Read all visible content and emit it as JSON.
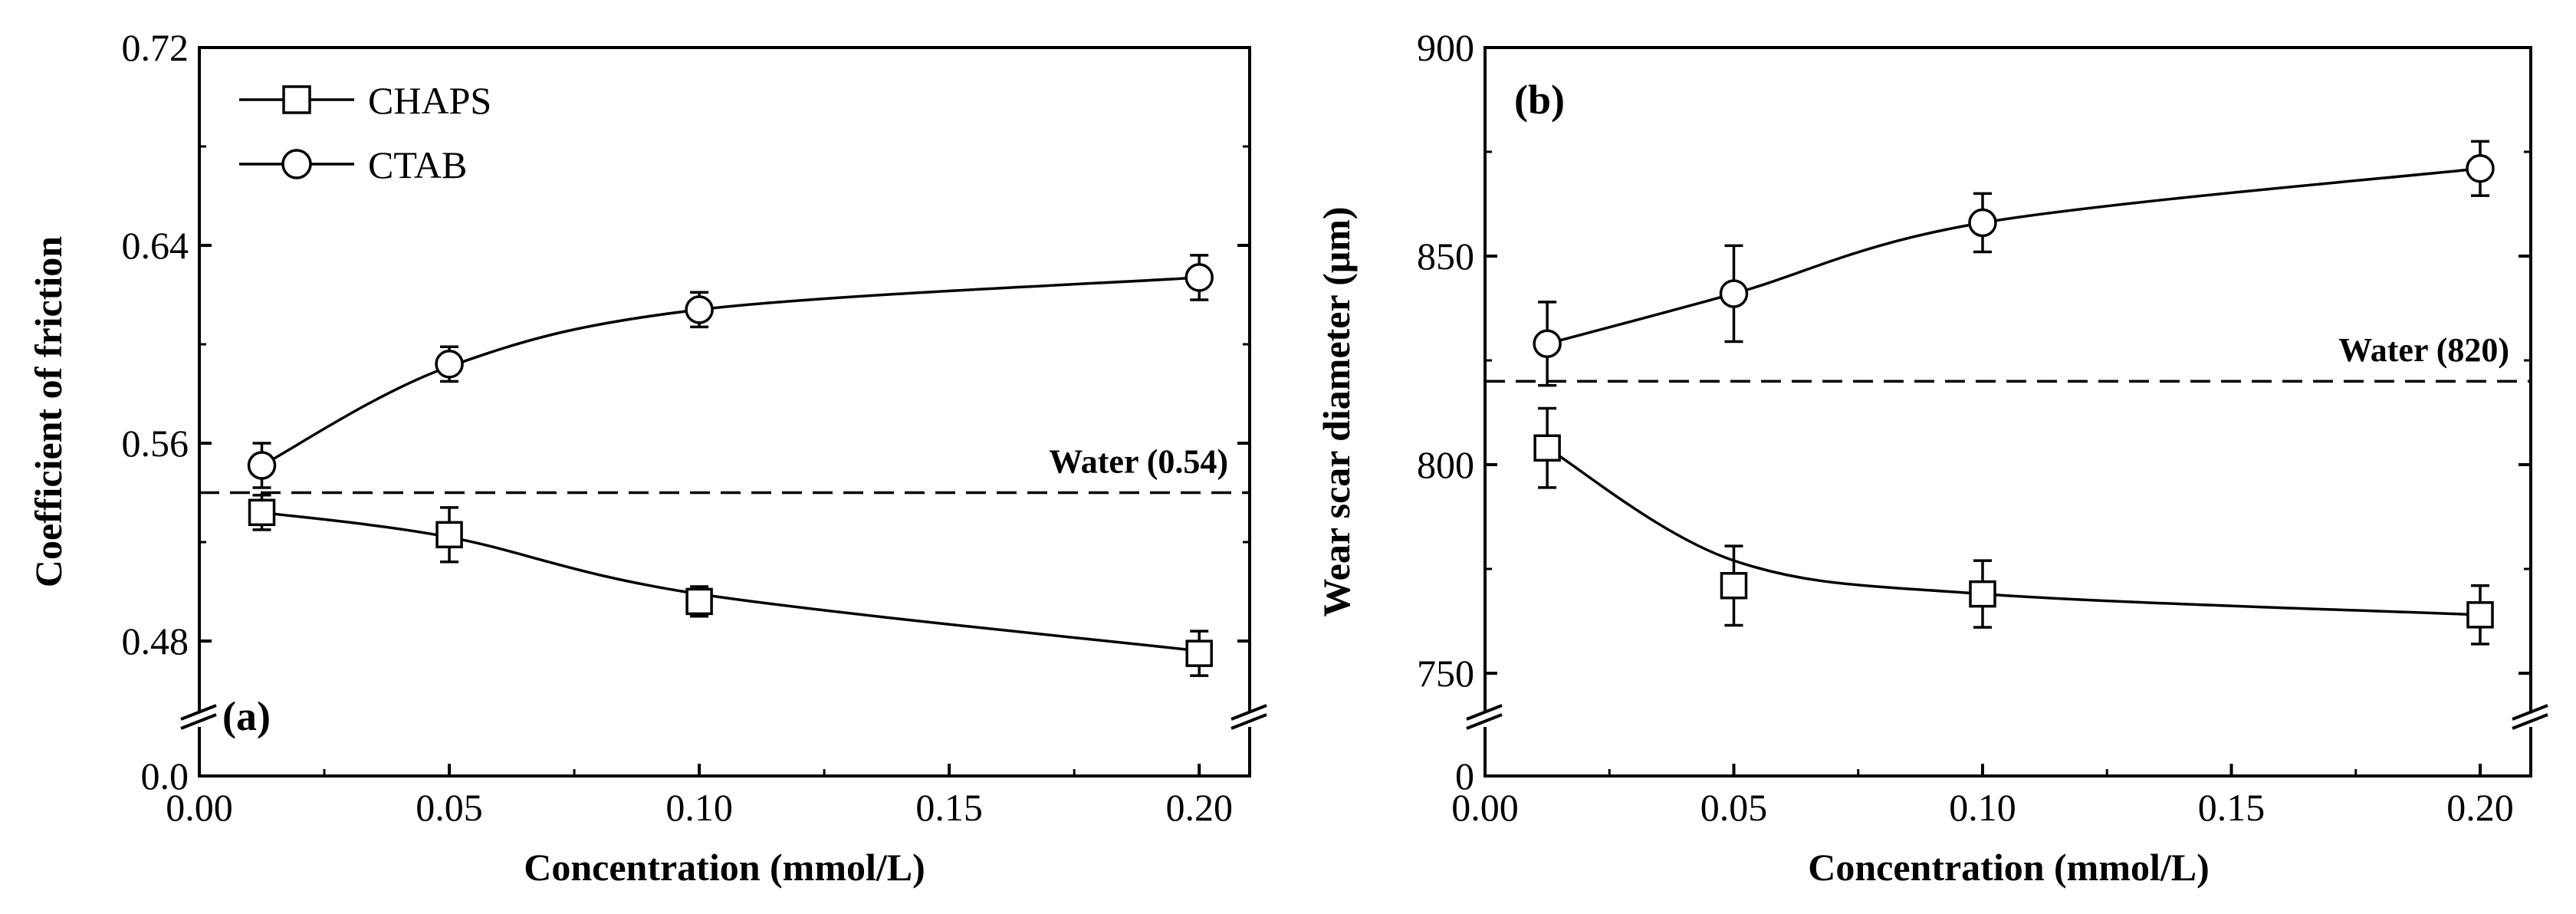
{
  "colors": {
    "ink": "#000000",
    "background": "#ffffff"
  },
  "chart_data": [
    {
      "type": "line",
      "panel": "(a)",
      "title": "",
      "xlabel": "Concentration (mmol/L)",
      "ylabel": "Coefficient of friction",
      "xlim": [
        0.0,
        0.21
      ],
      "ylim": [
        0.45,
        0.72
      ],
      "axis_break": true,
      "x_ticks": [
        0.0,
        0.05,
        0.1,
        0.15,
        0.2
      ],
      "x_tick_labels": [
        "0.00",
        "0.05",
        "0.10",
        "0.15",
        "0.20"
      ],
      "y_ticks": [
        0.48,
        0.56,
        0.64,
        0.72
      ],
      "y_tick_labels": [
        "0.48",
        "0.56",
        "0.64",
        "0.72"
      ],
      "y_zero_label": "0.0",
      "grid": false,
      "legend_position": "top-left",
      "reference_line": {
        "value": 0.54,
        "label": "Water (0.54)"
      },
      "x": [
        0.0125,
        0.05,
        0.1,
        0.2
      ],
      "series": [
        {
          "name": "CHAPS",
          "marker": "square",
          "values": [
            0.532,
            0.523,
            0.496,
            0.475
          ],
          "errors": [
            0.007,
            0.011,
            0.006,
            0.009
          ],
          "curve": [
            0.532,
            0.522,
            0.499,
            0.476
          ]
        },
        {
          "name": "CTAB",
          "marker": "circle",
          "values": [
            0.551,
            0.592,
            0.614,
            0.627
          ],
          "errors": [
            0.009,
            0.007,
            0.007,
            0.009
          ],
          "curve": [
            0.551,
            0.591,
            0.614,
            0.627
          ]
        }
      ]
    },
    {
      "type": "line",
      "panel": "(b)",
      "title": "",
      "xlabel": "Concentration (mmol/L)",
      "ylabel": "Wear scar diameter (μm)",
      "xlim": [
        0.0,
        0.21
      ],
      "ylim": [
        740,
        900
      ],
      "axis_break": true,
      "x_ticks": [
        0.0,
        0.05,
        0.1,
        0.15,
        0.2
      ],
      "x_tick_labels": [
        "0.00",
        "0.05",
        "0.10",
        "0.15",
        "0.20"
      ],
      "y_ticks": [
        750,
        800,
        850,
        900
      ],
      "y_tick_labels": [
        "750",
        "800",
        "850",
        "900"
      ],
      "y_zero_label": "0",
      "grid": false,
      "legend_position": "none",
      "reference_line": {
        "value": 820,
        "label": "Water (820)"
      },
      "x": [
        0.0125,
        0.05,
        0.1,
        0.2
      ],
      "series": [
        {
          "name": "CHAPS",
          "marker": "square",
          "values": [
            804,
            771,
            769,
            764
          ],
          "errors": [
            9.5,
            9.5,
            8,
            7
          ],
          "curve": [
            804,
            777,
            769,
            764
          ]
        },
        {
          "name": "CTAB",
          "marker": "circle",
          "values": [
            829,
            841,
            858,
            871
          ],
          "errors": [
            10,
            11.5,
            7,
            6.5
          ],
          "curve": [
            829,
            841,
            858,
            871
          ]
        }
      ]
    }
  ]
}
